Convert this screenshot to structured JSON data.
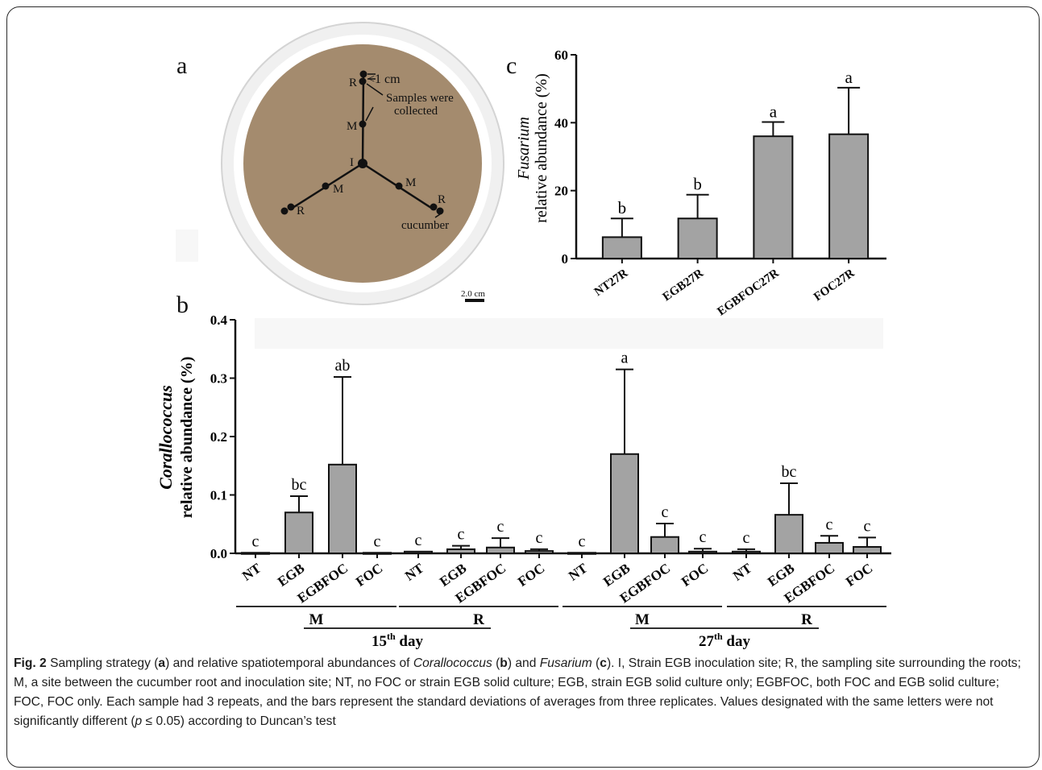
{
  "figure": {
    "panel_a_letter": "a",
    "panel_b_letter": "b",
    "panel_c_letter": "c"
  },
  "photo": {
    "label_R_top": "R",
    "label_dist": "<1 cm",
    "label_samples": "Samples were",
    "label_samples2": "collected",
    "label_M_top": "M",
    "label_I": "I",
    "label_M_left": "M",
    "label_M_right": "M",
    "label_R_left": "R",
    "label_R_right": "R",
    "label_cucumber": "cucumber",
    "scale_bar": "2.0 cm",
    "colors": {
      "plate": "#f2f2f2",
      "soil": "#a48b6e",
      "line": "#111111"
    }
  },
  "chart_data": [
    {
      "id": "c",
      "type": "bar",
      "title": "",
      "ylabel_italic": "Fusarium",
      "ylabel": "relative abundance (%)",
      "categories": [
        "NT27R",
        "EGB27R",
        "EGBFOC27R",
        "FOC27R"
      ],
      "values": [
        6.3,
        11.8,
        36.0,
        36.6
      ],
      "errors": [
        5.5,
        7.0,
        4.2,
        13.7
      ],
      "letters": [
        "b",
        "b",
        "a",
        "a"
      ],
      "ylim": [
        0,
        60
      ],
      "yticks": [
        "0",
        "20",
        "40",
        "60"
      ],
      "bar_color": "#a3a3a3"
    },
    {
      "id": "b",
      "type": "bar",
      "title": "",
      "ylabel_italic": "Corallococcus",
      "ylabel": "relative abundance (%)",
      "categories": [
        "NT",
        "EGB",
        "EGBFOC",
        "FOC",
        "NT",
        "EGB",
        "EGBFOC",
        "FOC",
        "NT",
        "EGB",
        "EGBFOC",
        "FOC",
        "NT",
        "EGB",
        "EGBFOC",
        "FOC"
      ],
      "values": [
        0.001,
        0.07,
        0.152,
        0.001,
        0.003,
        0.007,
        0.01,
        0.004,
        0.001,
        0.17,
        0.028,
        0.003,
        0.003,
        0.066,
        0.018,
        0.011
      ],
      "errors": [
        0.0,
        0.028,
        0.15,
        0.0,
        0.0,
        0.006,
        0.016,
        0.003,
        0.0,
        0.145,
        0.023,
        0.005,
        0.004,
        0.054,
        0.012,
        0.016
      ],
      "letters": [
        "c",
        "bc",
        "ab",
        "c",
        "c",
        "c",
        "c",
        "c",
        "c",
        "a",
        "c",
        "c",
        "c",
        "bc",
        "c",
        "c"
      ],
      "ylim": [
        0,
        0.4
      ],
      "yticks": [
        "0.0",
        "0.1",
        "0.2",
        "0.3",
        "0.4"
      ],
      "bar_color": "#a3a3a3",
      "groups": [
        {
          "label": "M",
          "start": 0,
          "end": 3
        },
        {
          "label": "R",
          "start": 4,
          "end": 7
        },
        {
          "label": "M",
          "start": 8,
          "end": 11
        },
        {
          "label": "R",
          "start": 12,
          "end": 15
        }
      ],
      "days": [
        {
          "label": "15",
          "sup": "th",
          "suffix": " day",
          "start": 0,
          "end": 7
        },
        {
          "label": "27",
          "sup": "th",
          "suffix": " day",
          "start": 8,
          "end": 15
        }
      ]
    }
  ],
  "caption": {
    "fig_label": "Fig. 2",
    "t1": " Sampling strategy (",
    "a": "a",
    "t2": ") and relative spatiotemporal abundances of ",
    "coral": "Corallococcus",
    "t3": " (",
    "b": "b",
    "t4": ") and ",
    "fus": "Fusarium",
    "t5": " (",
    "c": "c",
    "t6": "). I, Strain EGB inoculation site; R, the sampling site surrounding the roots; M, a site between the cucumber root and inoculation site; NT, no FOC or strain EGB solid culture; EGB, strain EGB solid culture only; EGBFOC, both FOC and EGB solid culture; FOC, FOC only. Each sample had 3 repeats, and the bars represent the standard deviations of averages from three replicates. Values designated with the same letters were not significantly different (",
    "p": "p",
    "t7": " ≤ 0.05) according to Duncan’s test"
  }
}
